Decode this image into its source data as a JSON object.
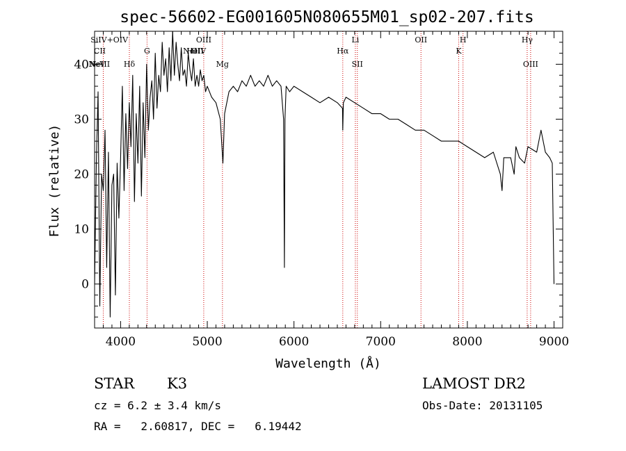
{
  "chart_data": {
    "type": "line",
    "title": "spec-56602-EG001605N080655M01_sp02-207.fits",
    "xlabel": "Wavelength (Å)",
    "ylabel": "Flux (relative)",
    "xlim": [
      3700,
      9100
    ],
    "ylim": [
      -8,
      46
    ],
    "xticks": [
      4000,
      5000,
      6000,
      7000,
      8000,
      9000
    ],
    "yticks": [
      0,
      10,
      20,
      30,
      40
    ],
    "series": [
      {
        "x": [
          3700,
          3720,
          3740,
          3760,
          3780,
          3800,
          3820,
          3840,
          3860,
          3880,
          3900,
          3920,
          3940,
          3960,
          3980,
          4000,
          4020,
          4040,
          4060,
          4080,
          4100,
          4120,
          4140,
          4160,
          4180,
          4200,
          4220,
          4240,
          4260,
          4280,
          4300,
          4320,
          4340,
          4360,
          4380,
          4400,
          4420,
          4440,
          4460,
          4480,
          4500,
          4520,
          4540,
          4560,
          4580,
          4600,
          4620,
          4640,
          4660,
          4680,
          4700,
          4720,
          4740,
          4760,
          4780,
          4800,
          4820,
          4840,
          4860,
          4880,
          4900,
          4920,
          4940,
          4960,
          4980,
          5000,
          5050,
          5100,
          5150,
          5180,
          5200,
          5250,
          5300,
          5350,
          5400,
          5450,
          5500,
          5550,
          5600,
          5650,
          5700,
          5750,
          5800,
          5850,
          5880,
          5890,
          5896,
          5910,
          5950,
          6000,
          6100,
          6200,
          6300,
          6400,
          6500,
          6560,
          6563,
          6570,
          6600,
          6700,
          6800,
          6900,
          7000,
          7100,
          7200,
          7300,
          7400,
          7500,
          7600,
          7700,
          7800,
          7900,
          8000,
          8100,
          8200,
          8300,
          8380,
          8400,
          8420,
          8500,
          8540,
          8560,
          8600,
          8660,
          8700,
          8800,
          8850,
          8900,
          8950,
          8980,
          9000
        ],
        "y": [
          0,
          22,
          35,
          -4,
          20,
          17,
          28,
          3,
          24,
          -6,
          18,
          20,
          -2,
          22,
          12,
          23,
          36,
          17,
          31,
          21,
          33,
          25,
          38,
          15,
          31,
          22,
          36,
          16,
          33,
          23,
          40,
          28,
          34,
          37,
          30,
          42,
          32,
          38,
          35,
          44,
          38,
          41,
          35,
          43,
          37,
          46,
          38,
          44,
          40,
          37,
          43,
          38,
          39,
          36,
          42,
          39,
          37,
          41,
          36,
          38,
          36,
          39,
          37,
          38,
          35,
          36,
          34,
          33,
          30,
          22,
          31,
          35,
          36,
          35,
          37,
          36,
          38,
          36,
          37,
          36,
          38,
          36,
          37,
          36,
          30,
          3,
          30,
          36,
          35,
          36,
          35,
          34,
          33,
          34,
          33,
          32,
          28,
          33,
          34,
          33,
          32,
          31,
          31,
          30,
          30,
          29,
          28,
          28,
          27,
          26,
          26,
          26,
          25,
          24,
          23,
          24,
          20,
          17,
          23,
          23,
          20,
          25,
          23,
          22,
          25,
          24,
          28,
          24,
          23,
          22,
          0
        ]
      }
    ],
    "line_markers": [
      {
        "label": "Si IV + O IV",
        "x": 3800
      },
      {
        "label": "Hδ",
        "x": 4101
      },
      {
        "label": "G",
        "x": 4305
      },
      {
        "label": "O III",
        "x": 4959
      },
      {
        "label": "Mg",
        "x": 5175
      },
      {
        "label": "Hα",
        "x": 6563
      },
      {
        "label": "Li",
        "x": 6708
      },
      {
        "label": "S II",
        "x": 6731
      },
      {
        "label": "O II",
        "x": 7465
      },
      {
        "label": "K",
        "x": 7900
      },
      {
        "label": "H",
        "x": 7950
      },
      {
        "label": "Hγ",
        "x": 8690
      },
      {
        "label": "O III",
        "x": 8730
      }
    ],
    "marker_labels": [
      {
        "text": "SiIV+OIV",
        "x": 3870,
        "row": 1
      },
      {
        "text": "CII",
        "x": 3760,
        "row": 2
      },
      {
        "text": "G",
        "x": 4305,
        "row": 2
      },
      {
        "text": "Hδ",
        "x": 4101,
        "row": 3
      },
      {
        "text": "OIII",
        "x": 4959,
        "row": 1
      },
      {
        "text": "NeII",
        "x": 4820,
        "row": 2
      },
      {
        "text": "HeII",
        "x": 4860,
        "row": 2
      },
      {
        "text": "OIV",
        "x": 4900,
        "row": 2
      },
      {
        "text": "Mg",
        "x": 5175,
        "row": 3
      },
      {
        "text": "Li",
        "x": 6708,
        "row": 1
      },
      {
        "text": "Hα",
        "x": 6563,
        "row": 2
      },
      {
        "text": "SII",
        "x": 6731,
        "row": 3
      },
      {
        "text": "OII",
        "x": 7465,
        "row": 1
      },
      {
        "text": "H",
        "x": 7950,
        "row": 1
      },
      {
        "text": "K",
        "x": 7900,
        "row": 2
      },
      {
        "text": "Hγ",
        "x": 8690,
        "row": 1
      },
      {
        "text": "OIII",
        "x": 8730,
        "row": 3
      },
      {
        "text": "NeV",
        "x": 3726,
        "row": 3
      },
      {
        "text": "NeIII",
        "x": 3760,
        "row": 3
      }
    ],
    "line_color": "#000000",
    "marker_color": "#cc0000",
    "grid": false
  },
  "info": {
    "object_class": "STAR",
    "subclass": "K3",
    "survey": "LAMOST DR2",
    "redshift": "cz = 6.2 ± 3.4 km/s",
    "obs_date": "Obs-Date: 20131105",
    "coords": "RA =   2.60817, DEC =   6.19442"
  }
}
